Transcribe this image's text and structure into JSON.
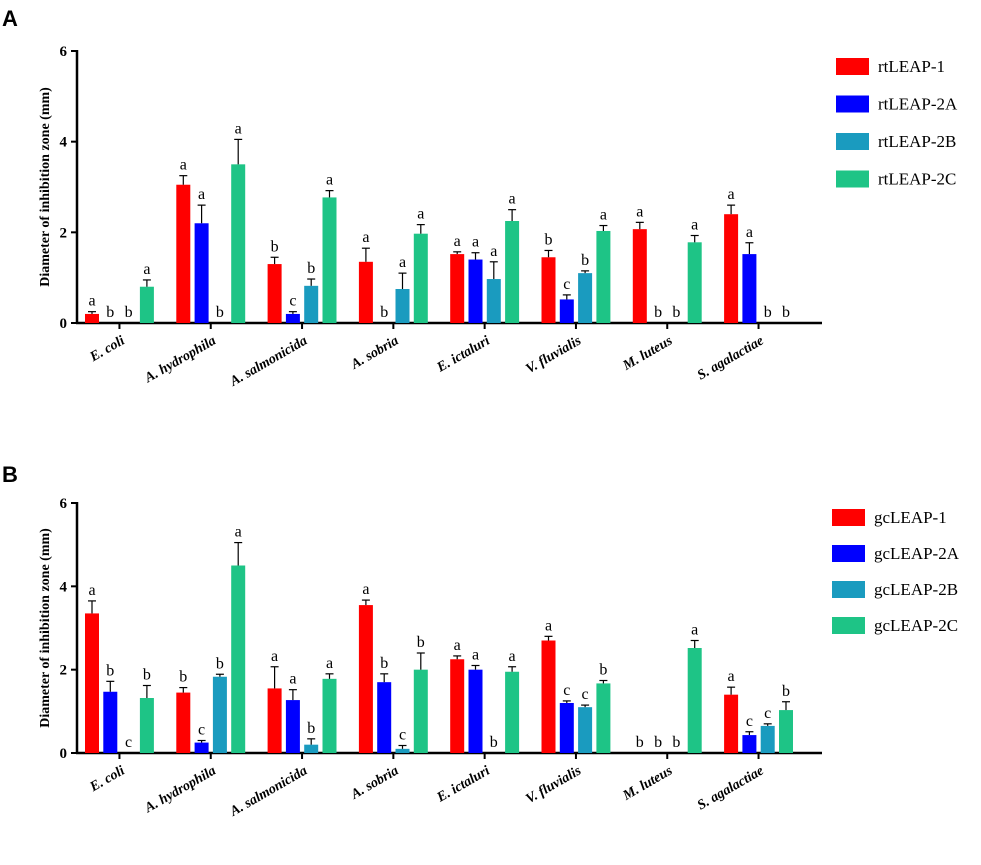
{
  "chart_data": [
    {
      "panel": "A",
      "type": "bar",
      "ylabel": "Diameter of inhibition zone (mm)",
      "ylim": [
        0,
        6
      ],
      "yticks": [
        "0",
        "2",
        "4",
        "6"
      ],
      "categories": [
        "E. coli",
        "A. hydrophila",
        "A. salmonicida",
        "A. sobria",
        "E. ictaluri",
        "V. fluvialis",
        "M. luteus",
        "S. agalactiae"
      ],
      "series": [
        {
          "name": "rtLEAP-1",
          "color": "#ff0000",
          "values": [
            0.2,
            3.05,
            1.3,
            1.35,
            1.52,
            1.45,
            2.07,
            2.4
          ],
          "errors": [
            0.05,
            0.2,
            0.15,
            0.3,
            0.05,
            0.15,
            0.15,
            0.2
          ],
          "letters": [
            "a",
            "a",
            "b",
            "a",
            "a",
            "b",
            "a",
            "a"
          ]
        },
        {
          "name": "rtLEAP-2A",
          "color": "#0000ff",
          "values": [
            0,
            2.2,
            0.2,
            0,
            1.4,
            0.52,
            0,
            1.52
          ],
          "errors": [
            0,
            0.4,
            0.05,
            0,
            0.15,
            0.1,
            0,
            0.25
          ],
          "letters": [
            "b",
            "a",
            "c",
            "b",
            "a",
            "c",
            "b",
            "a"
          ]
        },
        {
          "name": "rtLEAP-2B",
          "color": "#1a9bbf",
          "values": [
            0,
            0,
            0.82,
            0.75,
            0.97,
            1.1,
            0,
            0
          ],
          "errors": [
            0,
            0,
            0.15,
            0.35,
            0.38,
            0.05,
            0,
            0
          ],
          "letters": [
            "b",
            "b",
            "b",
            "a",
            "a",
            "b",
            "b",
            "b"
          ]
        },
        {
          "name": "rtLEAP-2C",
          "color": "#1ec486",
          "values": [
            0.8,
            3.5,
            2.77,
            1.97,
            2.25,
            2.03,
            1.78,
            0
          ],
          "errors": [
            0.15,
            0.55,
            0.15,
            0.2,
            0.25,
            0.12,
            0.15,
            0
          ],
          "letters": [
            "a",
            "a",
            "a",
            "a",
            "a",
            "a",
            "a",
            "b"
          ]
        }
      ]
    },
    {
      "panel": "B",
      "type": "bar",
      "ylabel": "Diameter of inhibition zone (mm)",
      "ylim": [
        0,
        6
      ],
      "yticks": [
        "0",
        "2",
        "4",
        "6"
      ],
      "categories": [
        "E. coli",
        "A. hydrophila",
        "A. salmonicida",
        "A. sobria",
        "E. ictaluri",
        "V. fluvialis",
        "M. luteus",
        "S. agalactiae"
      ],
      "series": [
        {
          "name": "gcLEAP-1",
          "color": "#ff0000",
          "values": [
            3.35,
            1.45,
            1.55,
            3.55,
            2.25,
            2.7,
            0,
            1.4
          ],
          "errors": [
            0.3,
            0.12,
            0.52,
            0.12,
            0.08,
            0.1,
            0,
            0.18
          ],
          "letters": [
            "a",
            "b",
            "a",
            "a",
            "a",
            "a",
            "b",
            "a"
          ]
        },
        {
          "name": "gcLEAP-2A",
          "color": "#0000ff",
          "values": [
            1.47,
            0.25,
            1.27,
            1.7,
            2.0,
            1.2,
            0,
            0.43
          ],
          "errors": [
            0.25,
            0.05,
            0.25,
            0.2,
            0.1,
            0.05,
            0,
            0.08
          ],
          "letters": [
            "b",
            "c",
            "a",
            "b",
            "a",
            "c",
            "b",
            "c"
          ]
        },
        {
          "name": "gcLEAP-2B",
          "color": "#1a9bbf",
          "values": [
            0,
            1.83,
            0.2,
            0.1,
            0,
            1.1,
            0,
            0.65
          ],
          "errors": [
            0,
            0.06,
            0.14,
            0.08,
            0,
            0.05,
            0,
            0.05
          ],
          "letters": [
            "c",
            "b",
            "b",
            "c",
            "b",
            "c",
            "b",
            "c"
          ]
        },
        {
          "name": "gcLEAP-2C",
          "color": "#1ec486",
          "values": [
            1.32,
            4.5,
            1.78,
            2.0,
            1.95,
            1.67,
            2.52,
            1.03
          ],
          "errors": [
            0.3,
            0.55,
            0.12,
            0.4,
            0.12,
            0.07,
            0.18,
            0.2
          ],
          "letters": [
            "b",
            "a",
            "a",
            "b",
            "a",
            "b",
            "a",
            "b"
          ]
        }
      ]
    }
  ]
}
